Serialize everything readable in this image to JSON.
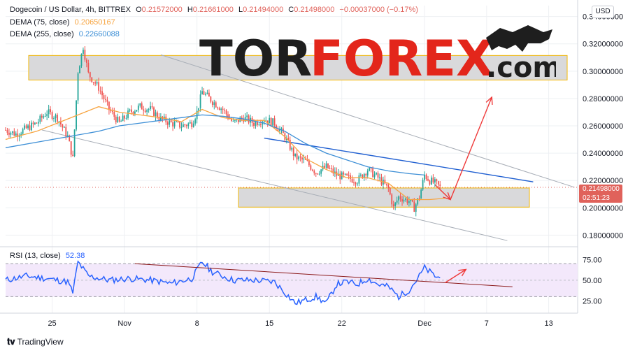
{
  "header": {
    "symbol": "Dogecoin / US Dollar, 4h, BITTREX",
    "open_label": "O",
    "open": "0.21572000",
    "high_label": "H",
    "high": "0.21661000",
    "low_label": "L",
    "low": "0.21494000",
    "close_label": "C",
    "close": "0.21498000",
    "change": "−0.00037000 (−0.17%)"
  },
  "indicators": [
    {
      "label": "DEMA (75, close)",
      "value": "0.20650167",
      "color": "#f7a440"
    },
    {
      "label": "DEMA (255, close)",
      "value": "0.22660088",
      "color": "#3d8fd6"
    }
  ],
  "rsi": {
    "label": "RSI (13, close)",
    "value": "52.38",
    "color": "#2962ff"
  },
  "currency": "USD",
  "price_tag": {
    "price": "0.21498000",
    "countdown": "02:51:23",
    "color": "#e0625b"
  },
  "watermark": {
    "part1": "TOR",
    "part2": "FOREX",
    "part3": ".com",
    "color1": "#1e1e1e",
    "color2": "#e3261b"
  },
  "footer": "TradingView",
  "chart_data": {
    "type": "candlestick",
    "y_ticks": [
      "0.34000000",
      "0.32000000",
      "0.30000000",
      "0.28000000",
      "0.26000000",
      "0.24000000",
      "0.22000000",
      "0.20000000",
      "0.18000000"
    ],
    "y_tick_values": [
      0.34,
      0.32,
      0.3,
      0.28,
      0.26,
      0.24,
      0.22,
      0.2,
      0.18
    ],
    "ylim": [
      0.172,
      0.348
    ],
    "rsi_ticks": [
      "75.00",
      "50.00",
      "25.00"
    ],
    "rsi_tick_values": [
      75,
      50,
      25
    ],
    "rsi_lim": [
      10,
      88
    ],
    "x_ticks": [
      "25",
      "Nov",
      "8",
      "15",
      "22",
      "Dec",
      "7",
      "13"
    ],
    "x_tick_days": [
      25,
      32,
      39,
      46,
      53,
      61,
      67,
      73
    ],
    "xlim": [
      20.5,
      75.8
    ],
    "close_path": [
      [
        20.5,
        0.257
      ],
      [
        21.5,
        0.254
      ],
      [
        22.5,
        0.258
      ],
      [
        23.5,
        0.262
      ],
      [
        24.5,
        0.27
      ],
      [
        25.5,
        0.266
      ],
      [
        26.5,
        0.252
      ],
      [
        27.0,
        0.236
      ],
      [
        27.5,
        0.3
      ],
      [
        28.0,
        0.318
      ],
      [
        28.5,
        0.298
      ],
      [
        29.5,
        0.288
      ],
      [
        30.5,
        0.272
      ],
      [
        31.5,
        0.262
      ],
      [
        32.5,
        0.27
      ],
      [
        33.5,
        0.274
      ],
      [
        34.5,
        0.272
      ],
      [
        35.5,
        0.265
      ],
      [
        36.5,
        0.262
      ],
      [
        37.5,
        0.26
      ],
      [
        38.5,
        0.262
      ],
      [
        39.0,
        0.27
      ],
      [
        39.5,
        0.285
      ],
      [
        40.5,
        0.278
      ],
      [
        41.5,
        0.272
      ],
      [
        42.5,
        0.262
      ],
      [
        43.5,
        0.266
      ],
      [
        44.5,
        0.262
      ],
      [
        45.5,
        0.265
      ],
      [
        46.5,
        0.262
      ],
      [
        47.5,
        0.252
      ],
      [
        48.5,
        0.237
      ],
      [
        49.5,
        0.234
      ],
      [
        50.5,
        0.226
      ],
      [
        51.5,
        0.23
      ],
      [
        52.5,
        0.224
      ],
      [
        53.5,
        0.222
      ],
      [
        54.5,
        0.22
      ],
      [
        55.5,
        0.228
      ],
      [
        56.5,
        0.222
      ],
      [
        57.5,
        0.214
      ],
      [
        58.0,
        0.2
      ],
      [
        58.5,
        0.208
      ],
      [
        59.5,
        0.205
      ],
      [
        60.0,
        0.2
      ],
      [
        60.5,
        0.208
      ],
      [
        61.0,
        0.224
      ],
      [
        61.5,
        0.22
      ],
      [
        62.0,
        0.218
      ],
      [
        62.5,
        0.215
      ]
    ],
    "dema75": [
      [
        20.5,
        0.25
      ],
      [
        23.5,
        0.256
      ],
      [
        25.5,
        0.262
      ],
      [
        27.5,
        0.268
      ],
      [
        29.5,
        0.274
      ],
      [
        31.5,
        0.27
      ],
      [
        33.5,
        0.268
      ],
      [
        35.5,
        0.266
      ],
      [
        37.5,
        0.263
      ],
      [
        39.5,
        0.272
      ],
      [
        41.5,
        0.266
      ],
      [
        43.5,
        0.264
      ],
      [
        45.5,
        0.264
      ],
      [
        47.5,
        0.252
      ],
      [
        49.5,
        0.236
      ],
      [
        51.5,
        0.228
      ],
      [
        53.5,
        0.222
      ],
      [
        55.5,
        0.222
      ],
      [
        57.5,
        0.218
      ],
      [
        59.5,
        0.206
      ],
      [
        61.5,
        0.206
      ],
      [
        63.0,
        0.207
      ]
    ],
    "dema255": [
      [
        20.5,
        0.244
      ],
      [
        23.5,
        0.248
      ],
      [
        26.5,
        0.252
      ],
      [
        29.5,
        0.256
      ],
      [
        31.5,
        0.26
      ],
      [
        33.5,
        0.262
      ],
      [
        35.5,
        0.264
      ],
      [
        37.5,
        0.266
      ],
      [
        39.5,
        0.268
      ],
      [
        41.5,
        0.267
      ],
      [
        43.5,
        0.265
      ],
      [
        45.5,
        0.262
      ],
      [
        47.5,
        0.256
      ],
      [
        49.5,
        0.247
      ],
      [
        51.5,
        0.24
      ],
      [
        53.5,
        0.235
      ],
      [
        55.5,
        0.23
      ],
      [
        57.5,
        0.227
      ],
      [
        59.5,
        0.225
      ],
      [
        61.0,
        0.224
      ]
    ],
    "rsi_values": [
      [
        20.5,
        50
      ],
      [
        22.5,
        55
      ],
      [
        24.5,
        52
      ],
      [
        26.5,
        48
      ],
      [
        27.0,
        35
      ],
      [
        27.5,
        72
      ],
      [
        28.5,
        55
      ],
      [
        30.5,
        50
      ],
      [
        32.5,
        52
      ],
      [
        34.5,
        50
      ],
      [
        36.5,
        46
      ],
      [
        38.5,
        52
      ],
      [
        39.5,
        72
      ],
      [
        40.5,
        60
      ],
      [
        42.5,
        50
      ],
      [
        44.5,
        50
      ],
      [
        46.5,
        48
      ],
      [
        47.5,
        35
      ],
      [
        48.5,
        22
      ],
      [
        50.5,
        30
      ],
      [
        51.5,
        22
      ],
      [
        52.5,
        45
      ],
      [
        53.5,
        48
      ],
      [
        54.5,
        45
      ],
      [
        55.5,
        52
      ],
      [
        56.5,
        45
      ],
      [
        57.5,
        42
      ],
      [
        58.5,
        30
      ],
      [
        59.5,
        38
      ],
      [
        60.5,
        55
      ],
      [
        61.0,
        65
      ],
      [
        62.0,
        55
      ],
      [
        62.5,
        52.38
      ]
    ],
    "resistance_zone": [
      0.2935,
      0.3115
    ],
    "support_zone": [
      0.2005,
      0.2145
    ],
    "channel_upper": [
      [
        35.5,
        0.312
      ],
      [
        75.5,
        0.215
      ]
    ],
    "channel_lower": [
      [
        24.0,
        0.257
      ],
      [
        69.0,
        0.176
      ]
    ],
    "blue_line": [
      [
        45.5,
        0.251
      ],
      [
        71.5,
        0.219
      ]
    ],
    "arrow_down": [
      [
        62.0,
        0.217
      ],
      [
        63.5,
        0.206
      ]
    ],
    "arrow_up": [
      [
        63.5,
        0.206
      ],
      [
        67.5,
        0.281
      ]
    ],
    "rsi_trendline": [
      [
        33.0,
        70
      ],
      [
        69.5,
        42
      ]
    ],
    "rsi_arrow": [
      [
        63.0,
        47
      ],
      [
        65.0,
        63
      ]
    ]
  }
}
